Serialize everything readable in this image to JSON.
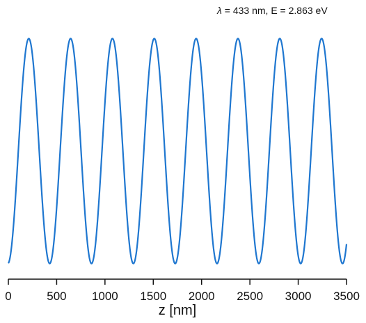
{
  "chart_data": {
    "type": "line",
    "title": "",
    "annotation": {
      "prefix": "λ",
      "text": " = 433 nm, E = 2.863 eV"
    },
    "xlabel": "z [nm]",
    "ylabel": "",
    "xlim": [
      0,
      3500
    ],
    "ylim": [
      -1.12,
      1.12
    ],
    "x_ticks": [
      0,
      500,
      1000,
      1500,
      2000,
      2500,
      3000,
      3500
    ],
    "x_tick_labels": [
      "0",
      "500",
      "1000",
      "1500",
      "2000",
      "2500",
      "3000",
      "3500"
    ],
    "y_axis_visible": false,
    "grid": false,
    "series": [
      {
        "function": "sin(2*pi*z/wavelength - pi/2.1)",
        "wavelength_nm": 433,
        "amplitude": 1,
        "x_range": [
          0,
          3500
        ],
        "color": "#1f77d0"
      }
    ]
  }
}
